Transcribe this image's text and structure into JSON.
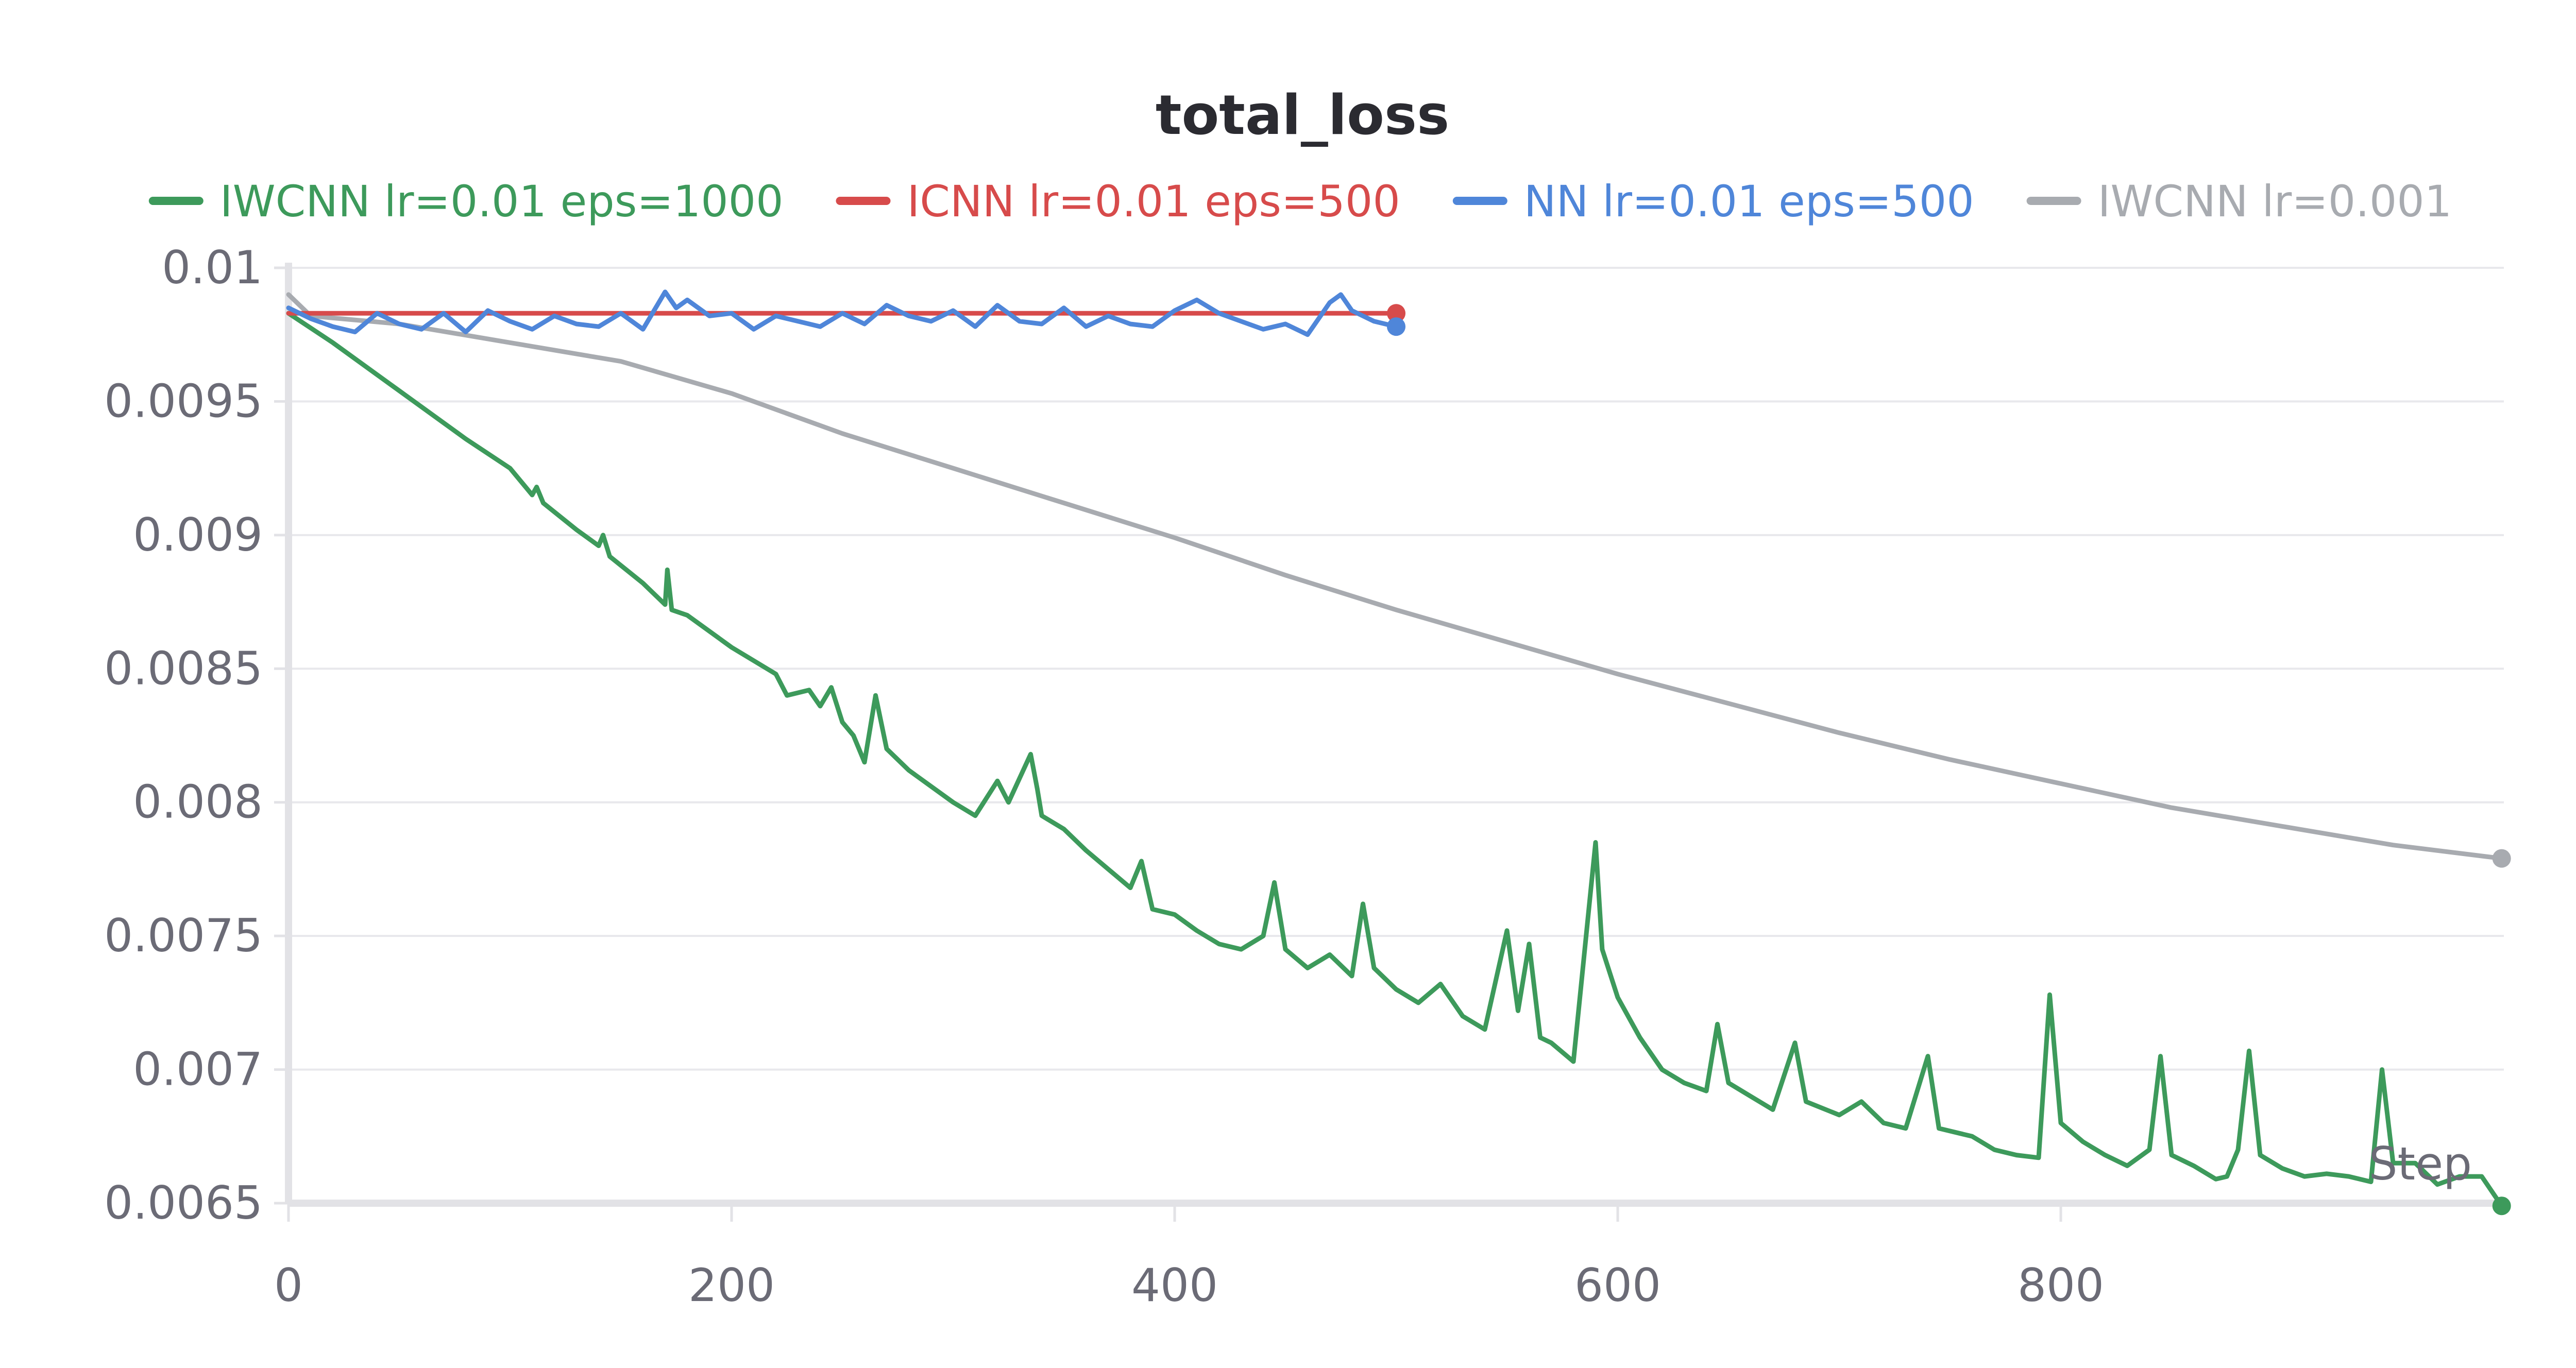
{
  "chart_data": {
    "type": "line",
    "title": "total_loss",
    "xlabel": "Step",
    "ylabel": "",
    "xlim": [
      0,
      1000
    ],
    "ylim": [
      0.0065,
      0.01
    ],
    "x_ticks": [
      0,
      200,
      400,
      600,
      800
    ],
    "y_ticks": [
      0.0065,
      0.007,
      0.0075,
      0.008,
      0.0085,
      0.009,
      0.0095,
      0.01
    ],
    "y_tick_labels": [
      "0.0065",
      "0.007",
      "0.0075",
      "0.008",
      "0.0085",
      "0.009",
      "0.0095",
      "0.01"
    ],
    "grid": true,
    "legend": "top",
    "series": [
      {
        "name": "IWCNN lr=0.01 eps=1000",
        "color": "#3d9a5b",
        "end_marker": true,
        "points": [
          [
            0,
            0.00983
          ],
          [
            20,
            0.00972
          ],
          [
            50,
            0.00954
          ],
          [
            80,
            0.00936
          ],
          [
            100,
            0.00925
          ],
          [
            110,
            0.00915
          ],
          [
            112,
            0.00918
          ],
          [
            115,
            0.00912
          ],
          [
            130,
            0.00902
          ],
          [
            140,
            0.00896
          ],
          [
            142,
            0.009
          ],
          [
            145,
            0.00892
          ],
          [
            160,
            0.00882
          ],
          [
            170,
            0.00874
          ],
          [
            171,
            0.00887
          ],
          [
            173,
            0.00872
          ],
          [
            180,
            0.0087
          ],
          [
            200,
            0.00858
          ],
          [
            220,
            0.00848
          ],
          [
            225,
            0.0084
          ],
          [
            235,
            0.00842
          ],
          [
            240,
            0.00836
          ],
          [
            245,
            0.00843
          ],
          [
            250,
            0.0083
          ],
          [
            255,
            0.00825
          ],
          [
            260,
            0.00815
          ],
          [
            265,
            0.0084
          ],
          [
            270,
            0.0082
          ],
          [
            280,
            0.00812
          ],
          [
            300,
            0.008
          ],
          [
            310,
            0.00795
          ],
          [
            320,
            0.00808
          ],
          [
            325,
            0.008
          ],
          [
            335,
            0.00818
          ],
          [
            338,
            0.00805
          ],
          [
            340,
            0.00795
          ],
          [
            350,
            0.0079
          ],
          [
            360,
            0.00782
          ],
          [
            370,
            0.00775
          ],
          [
            380,
            0.00768
          ],
          [
            385,
            0.00778
          ],
          [
            390,
            0.0076
          ],
          [
            400,
            0.00758
          ],
          [
            410,
            0.00752
          ],
          [
            420,
            0.00747
          ],
          [
            430,
            0.00745
          ],
          [
            440,
            0.0075
          ],
          [
            445,
            0.0077
          ],
          [
            450,
            0.00745
          ],
          [
            460,
            0.00738
          ],
          [
            470,
            0.00743
          ],
          [
            480,
            0.00735
          ],
          [
            485,
            0.00762
          ],
          [
            490,
            0.00738
          ],
          [
            500,
            0.0073
          ],
          [
            510,
            0.00725
          ],
          [
            520,
            0.00732
          ],
          [
            530,
            0.0072
          ],
          [
            540,
            0.00715
          ],
          [
            550,
            0.00752
          ],
          [
            555,
            0.00722
          ],
          [
            560,
            0.00747
          ],
          [
            565,
            0.00712
          ],
          [
            570,
            0.0071
          ],
          [
            580,
            0.00703
          ],
          [
            590,
            0.00785
          ],
          [
            593,
            0.00745
          ],
          [
            600,
            0.00727
          ],
          [
            610,
            0.00712
          ],
          [
            620,
            0.007
          ],
          [
            630,
            0.00695
          ],
          [
            640,
            0.00692
          ],
          [
            645,
            0.00717
          ],
          [
            650,
            0.00695
          ],
          [
            660,
            0.0069
          ],
          [
            670,
            0.00685
          ],
          [
            680,
            0.0071
          ],
          [
            685,
            0.00688
          ],
          [
            700,
            0.00683
          ],
          [
            710,
            0.00688
          ],
          [
            720,
            0.0068
          ],
          [
            730,
            0.00678
          ],
          [
            740,
            0.00705
          ],
          [
            745,
            0.00678
          ],
          [
            760,
            0.00675
          ],
          [
            770,
            0.0067
          ],
          [
            780,
            0.00668
          ],
          [
            790,
            0.00667
          ],
          [
            795,
            0.00728
          ],
          [
            800,
            0.0068
          ],
          [
            810,
            0.00673
          ],
          [
            820,
            0.00668
          ],
          [
            830,
            0.00664
          ],
          [
            840,
            0.0067
          ],
          [
            845,
            0.00705
          ],
          [
            850,
            0.00668
          ],
          [
            860,
            0.00664
          ],
          [
            870,
            0.00659
          ],
          [
            875,
            0.0066
          ],
          [
            880,
            0.0067
          ],
          [
            885,
            0.00707
          ],
          [
            890,
            0.00668
          ],
          [
            900,
            0.00663
          ],
          [
            910,
            0.0066
          ],
          [
            920,
            0.00661
          ],
          [
            930,
            0.0066
          ],
          [
            940,
            0.00658
          ],
          [
            945,
            0.007
          ],
          [
            950,
            0.00665
          ],
          [
            960,
            0.00665
          ],
          [
            970,
            0.00657
          ],
          [
            980,
            0.0066
          ],
          [
            990,
            0.0066
          ],
          [
            999,
            0.00649
          ]
        ]
      },
      {
        "name": "ICNN lr=0.01 eps=500",
        "color": "#d74b4b",
        "end_marker": true,
        "points": [
          [
            0,
            0.00983
          ],
          [
            500,
            0.00983
          ]
        ]
      },
      {
        "name": "NN lr=0.01 eps=500",
        "color": "#4f86d9",
        "end_marker": true,
        "points": [
          [
            0,
            0.00985
          ],
          [
            10,
            0.00981
          ],
          [
            20,
            0.00978
          ],
          [
            30,
            0.00976
          ],
          [
            40,
            0.00983
          ],
          [
            50,
            0.00979
          ],
          [
            60,
            0.00977
          ],
          [
            70,
            0.00983
          ],
          [
            80,
            0.00976
          ],
          [
            90,
            0.00984
          ],
          [
            100,
            0.0098
          ],
          [
            110,
            0.00977
          ],
          [
            120,
            0.00982
          ],
          [
            130,
            0.00979
          ],
          [
            140,
            0.00978
          ],
          [
            150,
            0.00983
          ],
          [
            160,
            0.00977
          ],
          [
            170,
            0.00991
          ],
          [
            175,
            0.00985
          ],
          [
            180,
            0.00988
          ],
          [
            190,
            0.00982
          ],
          [
            200,
            0.00983
          ],
          [
            210,
            0.00977
          ],
          [
            220,
            0.00982
          ],
          [
            230,
            0.0098
          ],
          [
            240,
            0.00978
          ],
          [
            250,
            0.00983
          ],
          [
            260,
            0.00979
          ],
          [
            270,
            0.00986
          ],
          [
            280,
            0.00982
          ],
          [
            290,
            0.0098
          ],
          [
            300,
            0.00984
          ],
          [
            310,
            0.00978
          ],
          [
            320,
            0.00986
          ],
          [
            330,
            0.0098
          ],
          [
            340,
            0.00979
          ],
          [
            350,
            0.00985
          ],
          [
            360,
            0.00978
          ],
          [
            370,
            0.00982
          ],
          [
            380,
            0.00979
          ],
          [
            390,
            0.00978
          ],
          [
            400,
            0.00984
          ],
          [
            410,
            0.00988
          ],
          [
            420,
            0.00983
          ],
          [
            430,
            0.0098
          ],
          [
            440,
            0.00977
          ],
          [
            450,
            0.00979
          ],
          [
            460,
            0.00975
          ],
          [
            470,
            0.00987
          ],
          [
            475,
            0.0099
          ],
          [
            480,
            0.00984
          ],
          [
            490,
            0.0098
          ],
          [
            500,
            0.00978
          ]
        ]
      },
      {
        "name": "IWCNN lr=0.001",
        "color": "#a8abb0",
        "end_marker": true,
        "points": [
          [
            0,
            0.0099
          ],
          [
            10,
            0.00982
          ],
          [
            50,
            0.00979
          ],
          [
            100,
            0.00972
          ],
          [
            150,
            0.00965
          ],
          [
            200,
            0.00953
          ],
          [
            250,
            0.00938
          ],
          [
            300,
            0.00925
          ],
          [
            350,
            0.00912
          ],
          [
            400,
            0.00899
          ],
          [
            450,
            0.00885
          ],
          [
            500,
            0.00872
          ],
          [
            550,
            0.0086
          ],
          [
            600,
            0.00848
          ],
          [
            650,
            0.00837
          ],
          [
            700,
            0.00826
          ],
          [
            750,
            0.00816
          ],
          [
            800,
            0.00807
          ],
          [
            850,
            0.00798
          ],
          [
            900,
            0.00791
          ],
          [
            950,
            0.00784
          ],
          [
            999,
            0.00779
          ]
        ]
      }
    ]
  }
}
